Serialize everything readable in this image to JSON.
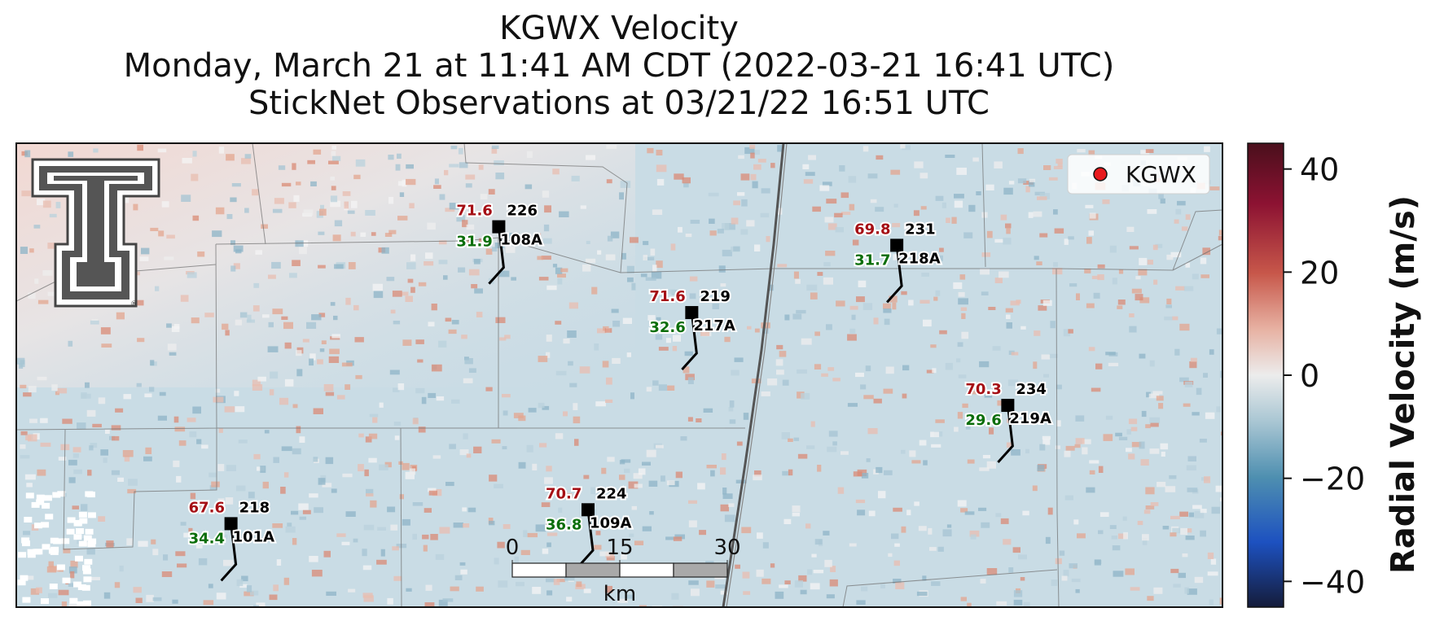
{
  "title": {
    "line1": "KGWX Velocity",
    "line2": "Monday, March 21 at 11:41 AM CDT (2022-03-21 16:41 UTC)",
    "line3": "StickNet Observations at 03/21/22 16:51 UTC"
  },
  "legend": {
    "label": "KGWX",
    "marker_color": "#e8191d"
  },
  "colors": {
    "temp": "#a50f15",
    "dewpoint": "#0b6e0b",
    "background": "#c9dde6",
    "warm": "#e9a38a",
    "cool": "#8fb6c9"
  },
  "stations": [
    {
      "id": "108A",
      "temp": "71.6",
      "dewpoint": "31.9",
      "dir": "226",
      "lon": 0.4,
      "lat": 0.18
    },
    {
      "id": "218A",
      "temp": "69.8",
      "dewpoint": "31.7",
      "dir": "231",
      "lon": 0.73,
      "lat": 0.22
    },
    {
      "id": "217A",
      "temp": "71.6",
      "dewpoint": "32.6",
      "dir": "219",
      "lon": 0.56,
      "lat": 0.365
    },
    {
      "id": "219A",
      "temp": "70.3",
      "dewpoint": "29.6",
      "dir": "234",
      "lon": 0.822,
      "lat": 0.565
    },
    {
      "id": "109A",
      "temp": "70.7",
      "dewpoint": "36.8",
      "dir": "224",
      "lon": 0.474,
      "lat": 0.79
    },
    {
      "id": "101A",
      "temp": "67.6",
      "dewpoint": "34.4",
      "dir": "218",
      "lon": 0.178,
      "lat": 0.82
    }
  ],
  "scalebar": {
    "ticks": [
      "0",
      "15",
      "30"
    ],
    "unit": "km"
  },
  "colorbar": {
    "label": "Radial Velocity (m/s)",
    "ticks": [
      "40",
      "20",
      "0",
      "−20",
      "−40"
    ],
    "range": [
      -45,
      45
    ],
    "tick_values": [
      40,
      20,
      0,
      -20,
      -40
    ]
  },
  "logo": {
    "name": "university-t-logo"
  }
}
